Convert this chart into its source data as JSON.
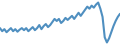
{
  "values": [
    38,
    32,
    36,
    30,
    34,
    38,
    32,
    36,
    31,
    35,
    38,
    34,
    38,
    32,
    36,
    40,
    34,
    38,
    44,
    36,
    42,
    46,
    40,
    44,
    50,
    56,
    52,
    56,
    48,
    52,
    58,
    54,
    58,
    62,
    56,
    62,
    68,
    62,
    68,
    74,
    80,
    76,
    82,
    78,
    84,
    88,
    76,
    60,
    20,
    10,
    18,
    30,
    42,
    52,
    60,
    66
  ],
  "line_color": "#4f8fc0",
  "background_color": "#ffffff",
  "linewidth": 1.5
}
